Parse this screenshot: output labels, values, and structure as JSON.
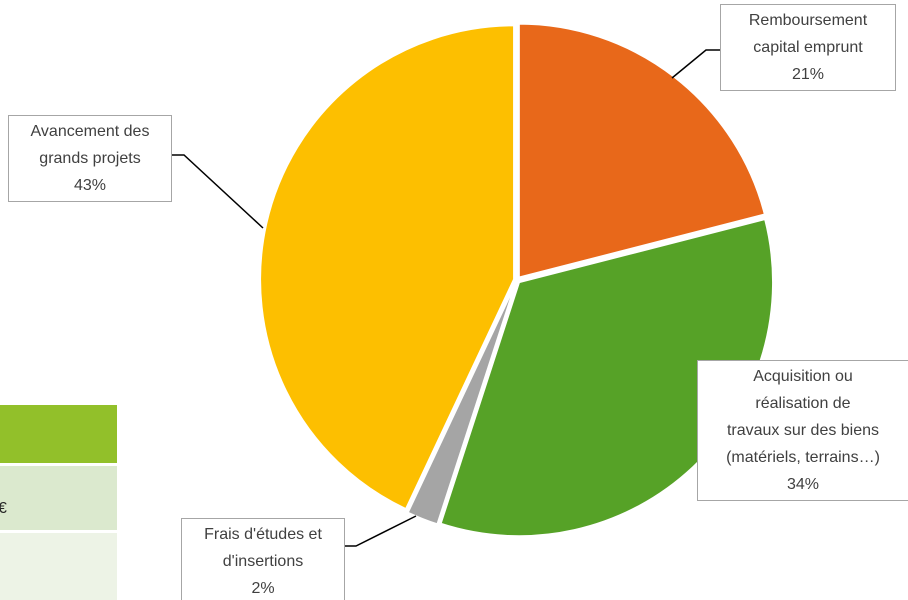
{
  "chart_data": {
    "type": "pie",
    "categories": [
      "Remboursement\ncapital emprunt",
      "Acquisition ou\nréalisation de\ntravaux sur des biens\n(matériels, terrains…)",
      "Frais d'études et\nd'insertions",
      "Avancement des\ngrands projets"
    ],
    "values": [
      21,
      34,
      2,
      43
    ],
    "value_labels": [
      "21%",
      "34%",
      "2%",
      "43%"
    ],
    "colors": [
      "#e8681a",
      "#56a227",
      "#a5a5a5",
      "#fdbf00"
    ]
  },
  "table_fragment": {
    "cells": [
      "€"
    ]
  }
}
